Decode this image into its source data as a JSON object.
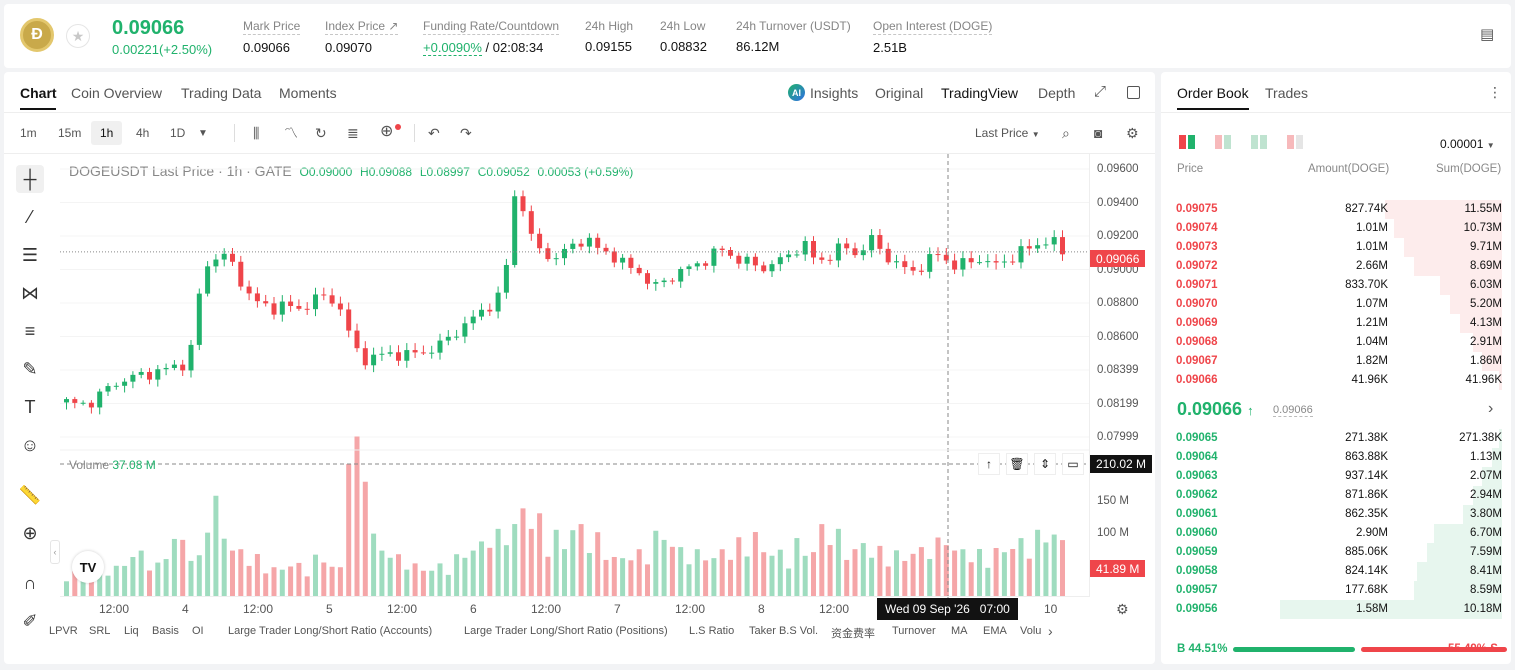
{
  "ticker": {
    "price": "0.09066",
    "change": "0.00221(+2.50%)",
    "stats": [
      {
        "label": "Mark Price",
        "value": "0.09066"
      },
      {
        "label": "Index Price ↗",
        "value": "0.09070"
      },
      {
        "label": "Funding Rate/Countdown",
        "value": "+0.0090%",
        "value2": "/ 02:08:34"
      },
      {
        "label": "24h High",
        "value": "0.09155"
      },
      {
        "label": "24h Low",
        "value": "0.08832"
      },
      {
        "label": "24h Turnover (USDT)",
        "value": "86.12M"
      },
      {
        "label": "Open Interest (DOGE)",
        "value": "2.51B"
      }
    ]
  },
  "chart_tabs": [
    "Chart",
    "Coin Overview",
    "Trading Data",
    "Moments"
  ],
  "view_tabs": {
    "insights": "Insights",
    "original": "Original",
    "tradingview": "TradingView",
    "depth": "Depth"
  },
  "timeframes": [
    "1m",
    "15m",
    "1h",
    "4h",
    "1D"
  ],
  "price_source": "Last Price",
  "legend": {
    "symbol": "DOGEUSDT Last Price · 1h · GATE",
    "o": "O0.09000",
    "h": "H0.09088",
    "l": "L0.08997",
    "c": "C0.09052",
    "chg": "0.00053 (+0.59%)"
  },
  "volume_legend": {
    "label": "Volume",
    "value": "37.08 M"
  },
  "price_axis": [
    "0.09600",
    "0.09400",
    "0.09200",
    "0.09000",
    "0.08800",
    "0.08600",
    "0.08399",
    "0.08199",
    "0.07999"
  ],
  "current_price_tag": "0.09066",
  "volume_axis": [
    "150 M",
    "100 M"
  ],
  "volume_crosshair_tag": "210.02 M",
  "volume_last_tag": "41.89 M",
  "x_labels": [
    "12:00",
    "4",
    "12:00",
    "5",
    "12:00",
    "6",
    "12:00",
    "7",
    "12:00",
    "8",
    "12:00",
    "10"
  ],
  "crosshair_time": "Wed 09 Sep '26   07:00",
  "indicators": [
    "LPVR",
    "SRL",
    "Liq",
    "Basis",
    "OI",
    "Large Trader Long/Short Ratio (Accounts)",
    "Large Trader Long/Short Ratio (Positions)",
    "L.S Ratio",
    "Taker B.S Vol.",
    "资金费率",
    "Turnover",
    "MA",
    "EMA",
    "Volu"
  ],
  "orderbook": {
    "tabs": [
      "Order Book",
      "Trades"
    ],
    "precision": "0.00001",
    "headers": {
      "price": "Price",
      "amount": "Amount(DOGE)",
      "sum": "Sum(DOGE)"
    },
    "asks": [
      {
        "price": "0.09075",
        "amount": "827.74K",
        "sum": "11.55M",
        "depth": 0.36
      },
      {
        "price": "0.09074",
        "amount": "1.01M",
        "sum": "10.73M",
        "depth": 0.33
      },
      {
        "price": "0.09073",
        "amount": "1.01M",
        "sum": "9.71M",
        "depth": 0.3
      },
      {
        "price": "0.09072",
        "amount": "2.66M",
        "sum": "8.69M",
        "depth": 0.27
      },
      {
        "price": "0.09071",
        "amount": "833.70K",
        "sum": "6.03M",
        "depth": 0.19
      },
      {
        "price": "0.09070",
        "amount": "1.07M",
        "sum": "5.20M",
        "depth": 0.16
      },
      {
        "price": "0.09069",
        "amount": "1.21M",
        "sum": "4.13M",
        "depth": 0.13
      },
      {
        "price": "0.09068",
        "amount": "1.04M",
        "sum": "2.91M",
        "depth": 0.09
      },
      {
        "price": "0.09067",
        "amount": "1.82M",
        "sum": "1.86M",
        "depth": 0.06
      },
      {
        "price": "0.09066",
        "amount": "41.96K",
        "sum": "41.96K",
        "depth": 0.01
      }
    ],
    "last_price": "0.09066",
    "mark_price": "0.09066",
    "bids": [
      {
        "price": "0.09065",
        "amount": "271.38K",
        "sum": "271.38K",
        "depth": 0.01
      },
      {
        "price": "0.09064",
        "amount": "863.88K",
        "sum": "1.13M",
        "depth": 0.03
      },
      {
        "price": "0.09063",
        "amount": "937.14K",
        "sum": "2.07M",
        "depth": 0.06
      },
      {
        "price": "0.09062",
        "amount": "871.86K",
        "sum": "2.94M",
        "depth": 0.09
      },
      {
        "price": "0.09061",
        "amount": "862.35K",
        "sum": "3.80M",
        "depth": 0.12
      },
      {
        "price": "0.09060",
        "amount": "2.90M",
        "sum": "6.70M",
        "depth": 0.21
      },
      {
        "price": "0.09059",
        "amount": "885.06K",
        "sum": "7.59M",
        "depth": 0.23
      },
      {
        "price": "0.09058",
        "amount": "824.14K",
        "sum": "8.41M",
        "depth": 0.26
      },
      {
        "price": "0.09057",
        "amount": "177.68K",
        "sum": "8.59M",
        "depth": 0.27
      },
      {
        "price": "0.09056",
        "amount": "1.58M",
        "sum": "10.18M",
        "depth": 0.68
      }
    ],
    "ratio": {
      "buy": "B 44.51%",
      "sell": "55.49% S",
      "buy_fraction": 0.4451
    }
  },
  "colors": {
    "up": "#20b26c",
    "down": "#ef454a",
    "text": "#121212"
  },
  "chart_data": {
    "type": "candlestick",
    "symbol": "DOGEUSDT",
    "interval": "1h",
    "ylim": [
      0.0792,
      0.0965
    ],
    "x_labels": [
      "12:00",
      "4",
      "12:00",
      "5",
      "12:00",
      "6",
      "12:00",
      "7",
      "12:00",
      "8",
      "12:00",
      "10"
    ],
    "close_path": [
      0.0817,
      0.0815,
      0.0818,
      0.0825,
      0.083,
      0.0832,
      0.0834,
      0.0836,
      0.0838,
      0.0842,
      0.0895,
      0.0905,
      0.0902,
      0.0885,
      0.0876,
      0.0873,
      0.0875,
      0.0872,
      0.0878,
      0.088,
      0.0875,
      0.085,
      0.0842,
      0.0845,
      0.0846,
      0.0845,
      0.0847,
      0.0849,
      0.0855,
      0.0862,
      0.0868,
      0.0875,
      0.0882,
      0.095,
      0.0915,
      0.0905,
      0.0903,
      0.091,
      0.0915,
      0.0908,
      0.0905,
      0.0898,
      0.0895,
      0.0885,
      0.089,
      0.0895,
      0.0898,
      0.0903,
      0.0908,
      0.0903,
      0.09,
      0.0897,
      0.09,
      0.0905,
      0.0912,
      0.09,
      0.0905,
      0.091,
      0.0905,
      0.0914,
      0.0905,
      0.0898,
      0.0895,
      0.09,
      0.0906,
      0.0898,
      0.09,
      0.0903,
      0.0898,
      0.0902,
      0.0907,
      0.091,
      0.0915,
      0.0906
    ],
    "volume_profile": [
      15,
      30,
      20,
      18,
      25,
      30,
      20,
      35,
      40,
      25,
      60,
      45,
      30,
      25,
      20,
      18,
      22,
      20,
      25,
      20,
      18,
      95,
      40,
      30,
      25,
      20,
      18,
      20,
      25,
      30,
      35,
      40,
      45,
      60,
      50,
      40,
      35,
      45,
      38,
      30,
      25,
      28,
      30,
      40,
      35,
      30,
      28,
      25,
      30,
      35,
      40,
      30,
      28,
      35,
      30,
      45,
      40,
      30,
      35,
      30,
      28,
      25,
      30,
      35,
      40,
      30,
      28,
      25,
      30,
      35,
      38,
      40,
      42,
      35
    ]
  }
}
